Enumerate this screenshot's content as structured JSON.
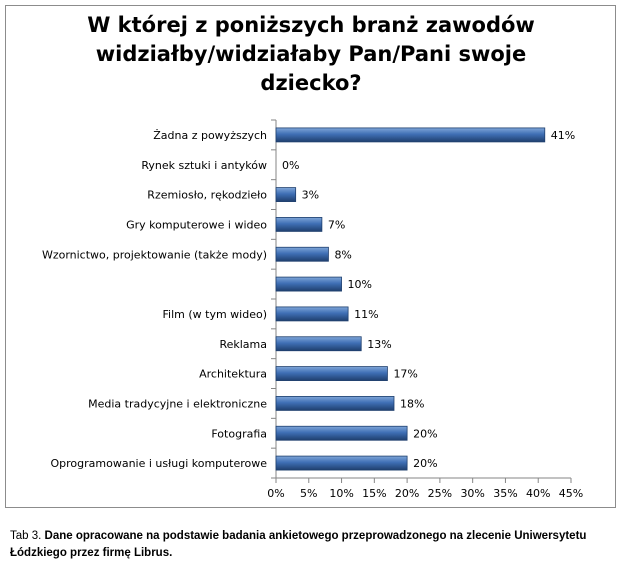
{
  "chart_data": {
    "type": "bar",
    "orientation": "horizontal",
    "title_lines": [
      "W której z poniższych branż zawodów",
      "widziałby/widziałaby Pan/Pani swoje",
      "dziecko?"
    ],
    "categories": [
      "Żadna z powyższych",
      "Rynek sztuki i antyków",
      "Rzemiosło, rękodzieło",
      "Gry komputerowe i wideo",
      "Wzornictwo, projektowanie (także mody)",
      "",
      "Film (w tym wideo)",
      "Reklama",
      "Architektura",
      "Media tradycyjne i elektroniczne",
      "Fotografia",
      "Oprogramowanie i usługi komputerowe"
    ],
    "values": [
      41,
      0,
      3,
      7,
      8,
      10,
      11,
      13,
      17,
      18,
      20,
      20
    ],
    "data_labels": [
      "41%",
      "0%",
      "3%",
      "7%",
      "8%",
      "10%",
      "11%",
      "13%",
      "17%",
      "18%",
      "20%",
      "20%"
    ],
    "xlim": [
      0,
      45
    ],
    "xticks": [
      "0%",
      "5%",
      "10%",
      "15%",
      "20%",
      "25%",
      "30%",
      "35%",
      "40%",
      "45%"
    ],
    "grid": false,
    "legend": "none",
    "colors": {
      "bar_light": "#4f81bd",
      "bar_dark": "#1f3f6e",
      "axis": "#868686"
    }
  },
  "caption": {
    "prefix": "Tab 3. ",
    "text": "Dane opracowane na podstawie badania ankietowego przeprowadzonego na zlecenie Uniwersytetu Łódzkiego przez firmę  Librus."
  }
}
